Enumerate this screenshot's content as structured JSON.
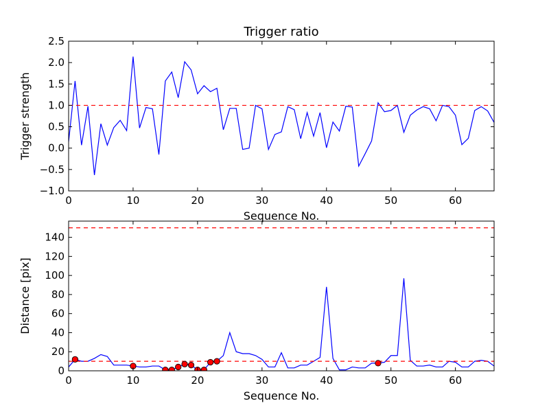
{
  "chart_data": [
    {
      "type": "line",
      "title": "Trigger ratio",
      "xlabel": "Sequence No.",
      "ylabel": "Trigger strength",
      "xlim": [
        0,
        66
      ],
      "ylim": [
        -1.0,
        2.5
      ],
      "xticks": [
        0,
        10,
        20,
        30,
        40,
        50,
        60
      ],
      "yticks": [
        -1.0,
        -0.5,
        0.0,
        0.5,
        1.0,
        1.5,
        2.0,
        2.5
      ],
      "ytick_labels": [
        "−1.0",
        "−0.5",
        "0.0",
        "0.5",
        "1.0",
        "1.5",
        "2.0",
        "2.5"
      ],
      "grid": false,
      "series": [
        {
          "color": "#0000ff",
          "style": "solid",
          "x": [
            0,
            1,
            2,
            3,
            4,
            5,
            6,
            7,
            8,
            9,
            10,
            11,
            12,
            13,
            14,
            15,
            16,
            17,
            18,
            19,
            20,
            21,
            22,
            23,
            24,
            25,
            26,
            27,
            28,
            29,
            30,
            31,
            32,
            33,
            34,
            35,
            36,
            37,
            38,
            39,
            40,
            41,
            42,
            43,
            44,
            45,
            46,
            47,
            48,
            49,
            50,
            51,
            52,
            53,
            54,
            55,
            56,
            57,
            58,
            59,
            60,
            61,
            62,
            63,
            64,
            65,
            66
          ],
          "y": [
            0.15,
            1.57,
            0.07,
            0.98,
            -0.63,
            0.57,
            0.07,
            0.48,
            0.65,
            0.41,
            2.14,
            0.47,
            0.95,
            0.92,
            -0.15,
            1.57,
            1.78,
            1.18,
            2.02,
            1.83,
            1.27,
            1.46,
            1.32,
            1.4,
            0.43,
            0.93,
            0.93,
            -0.03,
            0.0,
            1.0,
            0.92,
            -0.03,
            0.32,
            0.38,
            0.97,
            0.9,
            0.22,
            0.83,
            0.28,
            0.83,
            0.01,
            0.61,
            0.4,
            0.98,
            0.96,
            -0.42,
            -0.13,
            0.17,
            1.06,
            0.85,
            0.88,
            1.0,
            0.37,
            0.77,
            0.89,
            0.97,
            0.92,
            0.64,
            1.0,
            0.97,
            0.77,
            0.08,
            0.23,
            0.88,
            0.97,
            0.87,
            0.6
          ]
        },
        {
          "color": "#ff0000",
          "style": "dashed",
          "x": [
            0,
            66
          ],
          "y": [
            1.0,
            1.0
          ]
        }
      ]
    },
    {
      "type": "line",
      "title": "",
      "xlabel": "Sequence No.",
      "ylabel": "Distance [pix]",
      "xlim": [
        0,
        66
      ],
      "ylim": [
        0,
        157
      ],
      "xticks": [
        0,
        10,
        20,
        30,
        40,
        50,
        60
      ],
      "yticks": [
        0,
        20,
        40,
        60,
        80,
        100,
        120,
        140
      ],
      "ytick_labels": [
        "0",
        "20",
        "40",
        "60",
        "80",
        "100",
        "120",
        "140"
      ],
      "grid": false,
      "series": [
        {
          "color": "#0000ff",
          "style": "solid",
          "x": [
            0,
            1,
            2,
            3,
            4,
            5,
            6,
            7,
            8,
            9,
            10,
            11,
            12,
            13,
            14,
            15,
            16,
            17,
            18,
            19,
            20,
            21,
            22,
            23,
            24,
            25,
            26,
            27,
            28,
            29,
            30,
            31,
            32,
            33,
            34,
            35,
            36,
            37,
            38,
            39,
            40,
            41,
            42,
            43,
            44,
            45,
            46,
            47,
            48,
            49,
            50,
            51,
            52,
            53,
            54,
            55,
            56,
            57,
            58,
            59,
            60,
            61,
            62,
            63,
            64,
            65,
            66
          ],
          "y": [
            4,
            12,
            10,
            10,
            13,
            17,
            15,
            6,
            6,
            6,
            5,
            4,
            4,
            5,
            5,
            1,
            1,
            4,
            7,
            6,
            1,
            1,
            9,
            10,
            16,
            40,
            20,
            18,
            18,
            16,
            12,
            4,
            4,
            19,
            3,
            3,
            6,
            6,
            10,
            14,
            88,
            13,
            1,
            1,
            4,
            3,
            3,
            8,
            8,
            9,
            16,
            16,
            97,
            11,
            5,
            5,
            6,
            4,
            4,
            10,
            9,
            4,
            4,
            10,
            11,
            10,
            5
          ]
        },
        {
          "color": "#ff0000",
          "style": "dashed",
          "x": [
            0,
            66
          ],
          "y": [
            10,
            10
          ]
        },
        {
          "color": "#ff0000",
          "style": "dashed",
          "x": [
            0,
            66
          ],
          "y": [
            150,
            150
          ]
        },
        {
          "color": "#ff0000",
          "style": "markers",
          "x": [
            1,
            10,
            15,
            16,
            17,
            18,
            19,
            20,
            21,
            22,
            23,
            48
          ],
          "y": [
            12,
            5,
            1,
            1,
            4,
            7,
            6,
            1,
            1,
            9,
            10,
            8
          ]
        }
      ]
    }
  ]
}
